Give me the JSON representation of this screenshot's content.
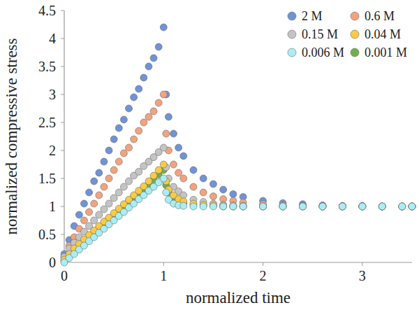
{
  "chart_data": {
    "type": "scatter",
    "x_label": "normalized time",
    "y_label": "normalized compressive stress",
    "xlim": [
      0,
      3.5
    ],
    "xticks": [
      0,
      1,
      2,
      3
    ],
    "ylim": [
      0,
      4.5
    ],
    "yticks": [
      0,
      0.5,
      1,
      1.5,
      2,
      2.5,
      3,
      3.5,
      4,
      4.5
    ],
    "grid": false,
    "legend": "top-right",
    "marker": "circle",
    "x": [
      0,
      0.05,
      0.1,
      0.15,
      0.2,
      0.25,
      0.3,
      0.35,
      0.4,
      0.45,
      0.5,
      0.55,
      0.6,
      0.65,
      0.7,
      0.75,
      0.8,
      0.85,
      0.9,
      0.95,
      1.0,
      1.025,
      1.05,
      1.1,
      1.15,
      1.2,
      1.3,
      1.4,
      1.5,
      1.6,
      1.7,
      1.8,
      2.0,
      2.2,
      2.4,
      2.6,
      2.8,
      3.0,
      3.2,
      3.4,
      3.5
    ],
    "series": [
      {
        "name": "2 M",
        "color": "#6f93d6",
        "values": [
          0.15,
          0.4,
          0.65,
          0.85,
          1.05,
          1.25,
          1.45,
          1.6,
          1.8,
          2.0,
          2.2,
          2.4,
          2.55,
          2.75,
          2.95,
          3.1,
          3.3,
          3.5,
          3.65,
          3.85,
          4.2,
          3.0,
          2.6,
          2.3,
          2.05,
          1.9,
          1.65,
          1.5,
          1.4,
          1.3,
          1.22,
          1.17,
          1.1,
          1.06,
          1.04,
          1.02,
          1.01,
          1.01,
          1.0,
          1.0,
          1.0
        ]
      },
      {
        "name": "0.6 M",
        "color": "#f2a37e",
        "values": [
          0.1,
          0.3,
          0.45,
          0.6,
          0.75,
          0.9,
          1.05,
          1.2,
          1.35,
          1.5,
          1.65,
          1.8,
          1.95,
          2.05,
          2.2,
          2.35,
          2.5,
          2.6,
          2.7,
          2.85,
          3.0,
          2.3,
          2.0,
          1.75,
          1.6,
          1.5,
          1.35,
          1.25,
          1.18,
          1.13,
          1.1,
          1.07,
          1.04,
          1.02,
          1.01,
          1.0,
          1.0,
          1.0,
          1.0,
          1.0,
          1.0
        ]
      },
      {
        "name": "0.15 M",
        "color": "#c4c4c4",
        "values": [
          0.1,
          0.25,
          0.35,
          0.45,
          0.55,
          0.65,
          0.75,
          0.85,
          0.95,
          1.05,
          1.15,
          1.25,
          1.35,
          1.45,
          1.55,
          1.62,
          1.72,
          1.8,
          1.88,
          1.97,
          2.05,
          1.7,
          1.5,
          1.35,
          1.27,
          1.2,
          1.12,
          1.08,
          1.05,
          1.03,
          1.02,
          1.01,
          1.0,
          1.0,
          1.0,
          1.0,
          1.0,
          1.0,
          1.0,
          1.0,
          1.0
        ]
      },
      {
        "name": "0.04 M",
        "color": "#f7cb45",
        "values": [
          0.05,
          0.15,
          0.25,
          0.33,
          0.41,
          0.49,
          0.57,
          0.65,
          0.73,
          0.8,
          0.88,
          0.96,
          1.04,
          1.12,
          1.2,
          1.28,
          1.36,
          1.45,
          1.55,
          1.65,
          1.75,
          1.45,
          1.3,
          1.2,
          1.13,
          1.09,
          1.05,
          1.03,
          1.02,
          1.01,
          1.0,
          1.0,
          1.0,
          1.0,
          1.0,
          1.0,
          1.0,
          1.0,
          1.0,
          1.0,
          1.0
        ]
      },
      {
        "name": "0.006 M",
        "color": "#a9eef6",
        "values": [
          0,
          0.08,
          0.15,
          0.23,
          0.3,
          0.38,
          0.45,
          0.53,
          0.6,
          0.68,
          0.75,
          0.83,
          0.9,
          0.98,
          1.05,
          1.13,
          1.2,
          1.28,
          1.35,
          1.43,
          1.5,
          1.25,
          1.12,
          1.05,
          1.02,
          1.01,
          1.0,
          1.0,
          1.0,
          1.0,
          1.0,
          1.0,
          1.0,
          1.0,
          1.0,
          1.0,
          1.0,
          1.0,
          1.0,
          1.0,
          1.0
        ]
      },
      {
        "name": "0.001 M",
        "color": "#72b04a",
        "values": [
          0.03,
          0.12,
          0.2,
          0.28,
          0.36,
          0.44,
          0.52,
          0.6,
          0.68,
          0.76,
          0.84,
          0.92,
          1.0,
          1.08,
          1.16,
          1.24,
          1.32,
          1.4,
          1.48,
          1.57,
          1.65,
          1.38,
          1.25,
          1.15,
          1.1,
          1.06,
          1.03,
          1.02,
          1.01,
          1.0,
          1.0,
          1.0,
          1.0,
          1.0,
          1.0,
          1.0,
          1.0,
          1.0,
          1.0,
          1.0,
          1.0
        ]
      }
    ]
  }
}
